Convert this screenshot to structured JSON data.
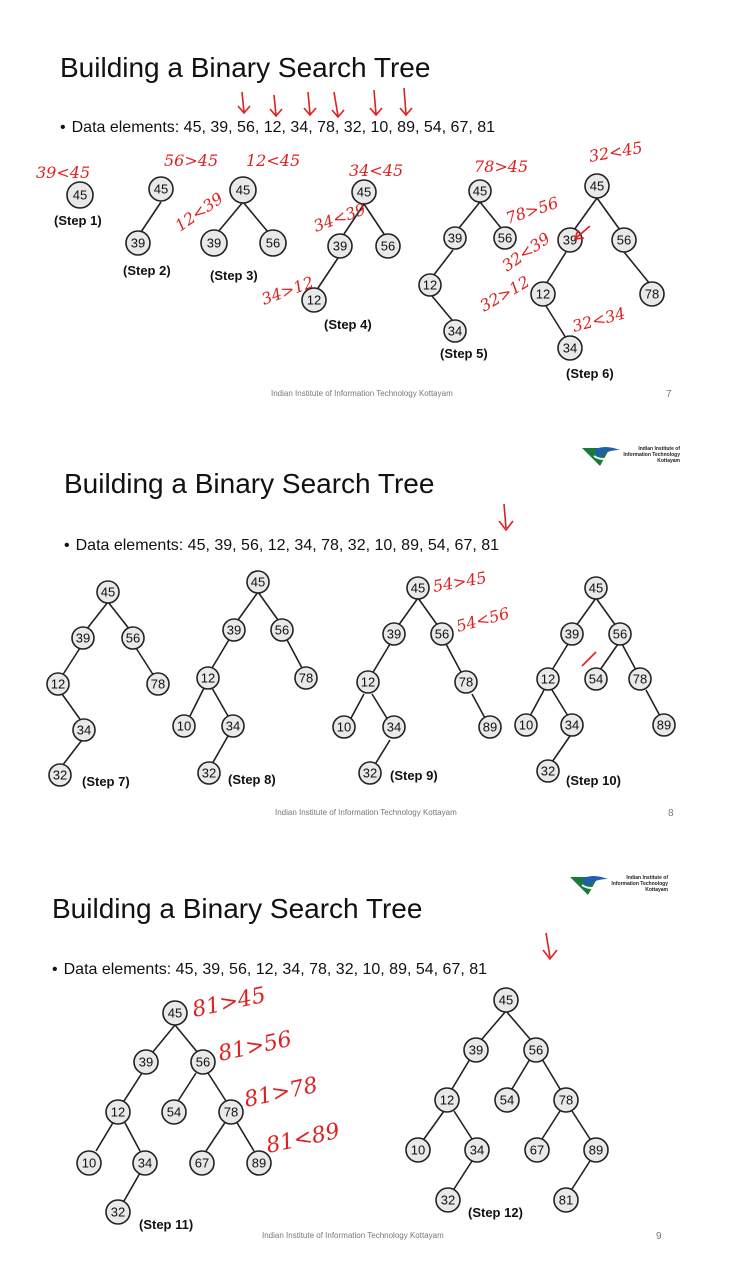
{
  "slides": [
    {
      "title": "Building a Binary Search Tree",
      "bullet": "Data elements: 45, 39, 56, 12, 34, 78, 32, 10, 89, 54, 67, 81",
      "footer": "Indian Institute of Information Technology Kottayam",
      "page": "7",
      "annotations": [
        "39<45",
        "56>45",
        "12<45",
        "12<39",
        "34<45",
        "34<39",
        "34>12",
        "78>45",
        "78>56",
        "32<45",
        "32<39",
        "32>12",
        "32<34"
      ],
      "steps": [
        "(Step 1)",
        "(Step 2)",
        "(Step 3)",
        "(Step 4)",
        "(Step 5)",
        "(Step 6)"
      ]
    },
    {
      "title": "Building a Binary Search Tree",
      "bullet": "Data elements: 45, 39, 56, 12, 34, 78, 32, 10, 89, 54, 67, 81",
      "footer": "Indian Institute of Information Technology Kottayam",
      "page": "8",
      "logo": "Indian Institute of Information Technology Kottayam",
      "annotations": [
        "54>45",
        "54<56"
      ],
      "steps": [
        "(Step 7)",
        "(Step 8)",
        "(Step 9)",
        "(Step 10)"
      ]
    },
    {
      "title": "Building a Binary Search Tree",
      "bullet": "Data elements: 45, 39, 56, 12, 34, 78, 32, 10, 89, 54, 67, 81",
      "footer": "Indian Institute of Information Technology Kottayam",
      "page": "9",
      "logo": "Indian Institute of Information Technology Kottayam",
      "annotations": [
        "81>45",
        "81>56",
        "81>78",
        "81<89"
      ],
      "steps": [
        "(Step 11)",
        "(Step 12)"
      ]
    }
  ],
  "colors": {
    "ink": "#e02020",
    "node_fill": "#e9e9e9",
    "logo_green": "#1a7a3a",
    "logo_blue": "#1f5fb0"
  }
}
